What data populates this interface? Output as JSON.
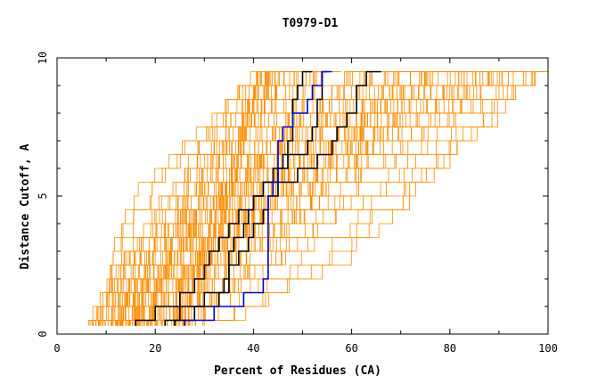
{
  "chart_data": {
    "type": "line",
    "title": "T0979-D1",
    "xlabel": "Percent of Residues (CA)",
    "ylabel": "Distance Cutoff, A",
    "xlim": [
      0,
      100
    ],
    "ylim": [
      0,
      10
    ],
    "x_ticks": [
      "0",
      "20",
      "40",
      "60",
      "80",
      "100"
    ],
    "y_ticks": [
      "0",
      "5",
      "10"
    ],
    "grid": false,
    "legend": "none",
    "colors": {
      "background_models": "#ff8c00",
      "highlight_black": "#000000",
      "highlight_blue": "#0000cc",
      "axis": "#000000"
    },
    "cutoffs": [
      0.3,
      0.5,
      1.0,
      1.5,
      2.0,
      2.5,
      3.0,
      3.5,
      4.0,
      4.5,
      5.0,
      5.5,
      6.0,
      6.5,
      7.0,
      7.5,
      8.0,
      8.5,
      9.0,
      9.5
    ],
    "highlight_series": [
      {
        "color": "black",
        "values": [
          16,
          20,
          25,
          28,
          30,
          31,
          33,
          35,
          37,
          40,
          42,
          44,
          46,
          47,
          48,
          48,
          48,
          49,
          50,
          52
        ]
      },
      {
        "color": "black",
        "values": [
          22,
          25,
          30,
          34,
          35,
          35,
          36,
          38,
          39,
          40,
          42,
          45,
          47,
          51,
          52,
          53,
          53,
          54,
          54,
          55
        ]
      },
      {
        "color": "black",
        "values": [
          24,
          28,
          33,
          35,
          35,
          37,
          39,
          40,
          42,
          43,
          45,
          49,
          53,
          56,
          57,
          59,
          61,
          61,
          63,
          66
        ]
      },
      {
        "color": "blue",
        "values": [
          26,
          32,
          38,
          42,
          43,
          43,
          43,
          43,
          43,
          43,
          44,
          45,
          45,
          45,
          46,
          48,
          51,
          52,
          54,
          56
        ]
      }
    ]
  }
}
